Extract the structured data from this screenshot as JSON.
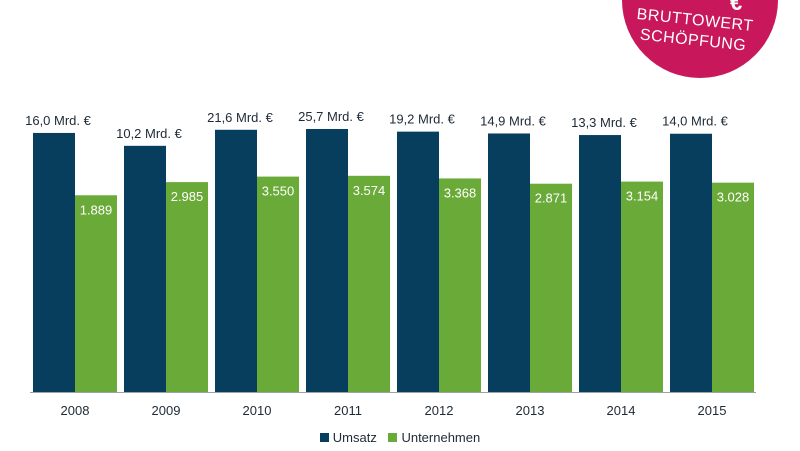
{
  "chart_data": {
    "type": "bar",
    "categories": [
      "2008",
      "2009",
      "2010",
      "2011",
      "2012",
      "2013",
      "2014",
      "2015"
    ],
    "series": [
      {
        "name": "Umsatz",
        "values": [
          16.0,
          10.2,
          21.6,
          25.7,
          19.2,
          14.9,
          13.3,
          14.0
        ],
        "labels": [
          "16,0 Mrd. €",
          "10,2 Mrd. €",
          "21,6 Mrd. €",
          "25,7 Mrd. €",
          "19,2 Mrd. €",
          "14,9 Mrd. €",
          "13,3 Mrd. €",
          "14,0 Mrd. €"
        ],
        "bar_levels": [
          0.985,
          0.936,
          0.997,
          1.0,
          0.99,
          0.983,
          0.977,
          0.982
        ],
        "color": "#073e5e"
      },
      {
        "name": "Unternehmen",
        "values": [
          1889,
          2985,
          3550,
          3574,
          3368,
          2871,
          3154,
          3028
        ],
        "labels": [
          "1.889",
          "2.985",
          "3.550",
          "3.574",
          "3.368",
          "2.871",
          "3.154",
          "3.028"
        ],
        "bar_levels": [
          0.748,
          0.798,
          0.819,
          0.822,
          0.812,
          0.792,
          0.8,
          0.796
        ],
        "color": "#6aaa38"
      }
    ],
    "title": "",
    "xlabel": "",
    "ylabel": "",
    "grid": false,
    "legend_position": "bottom-center"
  },
  "badge": {
    "euro": "€",
    "line1": "BRUTTOWERT",
    "line2": "SCHÖPFUNG",
    "color": "#c8175a"
  },
  "legend": {
    "items": [
      {
        "label": "Umsatz",
        "color": "#073e5e"
      },
      {
        "label": "Unternehmen",
        "color": "#6aaa38"
      }
    ]
  }
}
